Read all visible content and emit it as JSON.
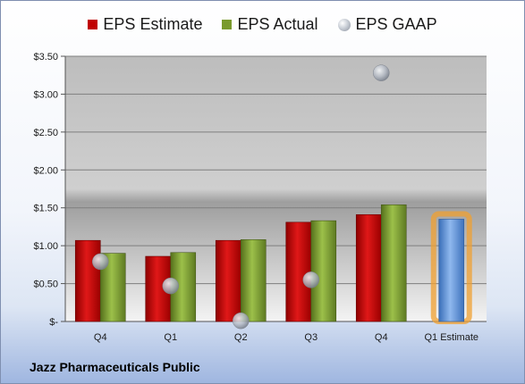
{
  "chart_data": {
    "type": "bar",
    "title": "",
    "xlabel": "",
    "ylabel": "",
    "categories": [
      "Q4",
      "Q1",
      "Q2",
      "Q3",
      "Q4",
      "Q1 Estimate"
    ],
    "ylim": [
      0,
      3.5
    ],
    "yticks": [
      0,
      0.5,
      1.0,
      1.5,
      2.0,
      2.5,
      3.0,
      3.5
    ],
    "ytick_labels": [
      "$-",
      "$0.50",
      "$1.00",
      "$1.50",
      "$2.00",
      "$2.50",
      "$3.00",
      "$3.50"
    ],
    "grid": true,
    "legend_position": "top",
    "series": [
      {
        "name": "EPS Estimate",
        "kind": "bar",
        "color": "#c00000",
        "values": [
          1.07,
          0.86,
          1.07,
          1.31,
          1.41,
          null
        ]
      },
      {
        "name": "EPS Actual",
        "kind": "bar",
        "color": "#7a9a2e",
        "values": [
          0.9,
          0.91,
          1.08,
          1.33,
          1.54,
          null
        ]
      },
      {
        "name": "EPS GAAP",
        "kind": "marker",
        "color": "#b8bec8",
        "values": [
          0.79,
          0.47,
          0.01,
          0.55,
          3.28,
          null
        ]
      },
      {
        "name": "",
        "kind": "bar",
        "color": "#5b8fd6",
        "highlight": "#f0a030",
        "values": [
          null,
          null,
          null,
          null,
          null,
          1.35
        ]
      }
    ]
  },
  "footer": {
    "company": "Jazz Pharmaceuticals Public"
  }
}
